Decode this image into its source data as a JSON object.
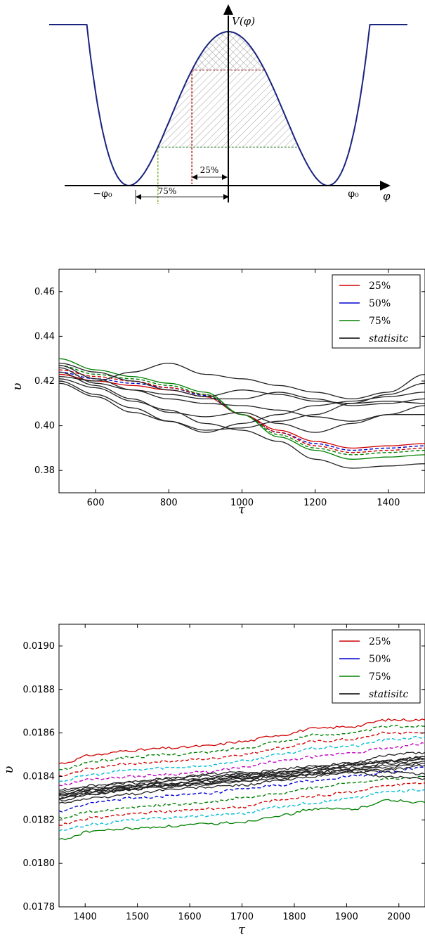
{
  "chart_data": [
    {
      "type": "diagram",
      "y_axis_label": "V(φ)",
      "x_axis_label": "φ",
      "x_tick_labels": [
        "−φ₀",
        "φ₀"
      ],
      "level_labels": [
        "25%",
        "75%"
      ],
      "curve": "double-well potential",
      "x_range": [
        -1.8,
        1.8
      ],
      "y_range": [
        0,
        1.1
      ],
      "minima_x": [
        -1,
        1
      ],
      "maximum": 1,
      "levels": [
        {
          "label": "25%",
          "fraction_below_max": 0.25,
          "color": "#8b0000"
        },
        {
          "label": "75%",
          "fraction_below_max": 0.75,
          "color": "#2e7d32"
        }
      ],
      "colors": {
        "curve": "#1a237e",
        "red": "#b71c1c",
        "green": "#2e7d32"
      }
    },
    {
      "type": "line",
      "xlabel": "τ",
      "ylabel": "υ",
      "xlim": [
        500,
        1500
      ],
      "ylim": [
        0.37,
        0.47
      ],
      "xticks": [
        600,
        800,
        1000,
        1200,
        1400
      ],
      "yticks": [
        0.38,
        0.4,
        0.42,
        0.44,
        0.46
      ],
      "xtick_labels": [
        "600",
        "800",
        "1000",
        "1200",
        "1400"
      ],
      "ytick_labels": [
        "0.38",
        "0.40",
        "0.42",
        "0.44",
        "0.46"
      ],
      "legend": {
        "position": "top-right",
        "entries": [
          {
            "label": "25%",
            "color": "#d00000",
            "style": "solid"
          },
          {
            "label": "50%",
            "color": "#0000d0",
            "style": "solid"
          },
          {
            "label": "75%",
            "color": "#008000",
            "style": "solid"
          },
          {
            "label": "statisitc",
            "color": "#000000",
            "style": "solid",
            "italic": true
          }
        ]
      },
      "x": [
        500,
        600,
        700,
        800,
        900,
        1000,
        1100,
        1200,
        1300,
        1400,
        1500
      ],
      "series": [
        {
          "name": "25%",
          "color": "#d00000",
          "style": "solid",
          "values": [
            0.423,
            0.42,
            0.418,
            0.416,
            0.413,
            0.405,
            0.398,
            0.393,
            0.39,
            0.391,
            0.392
          ]
        },
        {
          "color": "#0000d0",
          "style": "dashed",
          "values": [
            0.424,
            0.421,
            0.419,
            0.417,
            0.4135,
            0.405,
            0.397,
            0.392,
            0.389,
            0.39,
            0.391
          ]
        },
        {
          "color": "#d00000",
          "style": "dashed",
          "values": [
            0.425,
            0.422,
            0.42,
            0.417,
            0.414,
            0.405,
            0.397,
            0.391,
            0.388,
            0.389,
            0.39
          ]
        },
        {
          "color": "#008000",
          "style": "dashed",
          "values": [
            0.427,
            0.423,
            0.421,
            0.418,
            0.414,
            0.405,
            0.396,
            0.39,
            0.387,
            0.388,
            0.389
          ]
        },
        {
          "name": "75%",
          "color": "#008000",
          "style": "solid",
          "values": [
            0.43,
            0.425,
            0.422,
            0.419,
            0.415,
            0.405,
            0.395,
            0.389,
            0.385,
            0.386,
            0.387
          ]
        },
        {
          "name": "statisitc",
          "color": "#222222",
          "style": "solid",
          "values": [
            0.422,
            0.42,
            0.424,
            0.428,
            0.423,
            0.421,
            0.418,
            0.415,
            0.412,
            0.415,
            0.423
          ]
        },
        {
          "color": "#222222",
          "style": "solid",
          "values": [
            0.421,
            0.417,
            0.411,
            0.407,
            0.401,
            0.398,
            0.393,
            0.385,
            0.381,
            0.382,
            0.383
          ]
        },
        {
          "color": "#222222",
          "style": "solid",
          "values": [
            0.426,
            0.419,
            0.416,
            0.414,
            0.412,
            0.412,
            0.415,
            0.412,
            0.409,
            0.41,
            0.412
          ]
        },
        {
          "color": "#222222",
          "style": "solid",
          "values": [
            0.42,
            0.414,
            0.408,
            0.402,
            0.398,
            0.399,
            0.402,
            0.405,
            0.41,
            0.411,
            0.41
          ]
        },
        {
          "color": "#222222",
          "style": "solid",
          "values": [
            0.424,
            0.418,
            0.412,
            0.406,
            0.404,
            0.406,
            0.401,
            0.397,
            0.401,
            0.405,
            0.405
          ]
        },
        {
          "color": "#222222",
          "style": "solid",
          "values": [
            0.419,
            0.413,
            0.406,
            0.402,
            0.397,
            0.401,
            0.405,
            0.409,
            0.411,
            0.413,
            0.415
          ]
        },
        {
          "color": "#222222",
          "style": "solid",
          "values": [
            0.428,
            0.424,
            0.42,
            0.416,
            0.413,
            0.416,
            0.414,
            0.411,
            0.41,
            0.414,
            0.419
          ]
        },
        {
          "color": "#222222",
          "style": "solid",
          "values": [
            0.427,
            0.421,
            0.416,
            0.412,
            0.41,
            0.409,
            0.407,
            0.404,
            0.402,
            0.405,
            0.409
          ]
        }
      ]
    },
    {
      "type": "line",
      "xlabel": "τ",
      "ylabel": "υ",
      "xlim": [
        1350,
        2050
      ],
      "ylim": [
        0.0178,
        0.0191
      ],
      "xticks": [
        1400,
        1500,
        1600,
        1700,
        1800,
        1900,
        2000
      ],
      "yticks": [
        0.0178,
        0.018,
        0.0182,
        0.0184,
        0.0186,
        0.0188,
        0.019
      ],
      "xtick_labels": [
        "1400",
        "1500",
        "1600",
        "1700",
        "1800",
        "1900",
        "2000"
      ],
      "ytick_labels": [
        "0.0178",
        "0.0180",
        "0.0182",
        "0.0184",
        "0.0186",
        "0.0188",
        "0.0190"
      ],
      "legend": {
        "position": "top-right",
        "entries": [
          {
            "label": "25%",
            "color": "#d00000",
            "style": "solid"
          },
          {
            "label": "50%",
            "color": "#0000d0",
            "style": "solid"
          },
          {
            "label": "75%",
            "color": "#008000",
            "style": "solid"
          },
          {
            "label": "statisitc",
            "color": "#000000",
            "style": "solid",
            "italic": true
          }
        ]
      },
      "x": [
        1350,
        1420,
        1490,
        1560,
        1630,
        1700,
        1770,
        1840,
        1910,
        1980,
        2050
      ],
      "series": [
        {
          "name": "25%",
          "color": "#d00000",
          "style": "solid",
          "values": [
            0.01846,
            0.0185,
            0.01852,
            0.01853,
            0.01854,
            0.01856,
            0.01859,
            0.01862,
            0.01863,
            0.01866,
            0.01866
          ]
        },
        {
          "color": "#008000",
          "style": "dashed",
          "values": [
            0.01843,
            0.01847,
            0.01849,
            0.0185,
            0.01851,
            0.01853,
            0.01856,
            0.01859,
            0.0186,
            0.01863,
            0.01863
          ]
        },
        {
          "color": "#d00000",
          "style": "dashed",
          "values": [
            0.0184,
            0.01844,
            0.01846,
            0.01847,
            0.01848,
            0.0185,
            0.01853,
            0.01856,
            0.01857,
            0.0186,
            0.0186
          ]
        },
        {
          "color": "#00bcd4",
          "style": "dashed",
          "values": [
            0.01838,
            0.01841,
            0.01843,
            0.01844,
            0.01845,
            0.01847,
            0.0185,
            0.01853,
            0.01854,
            0.01857,
            0.01858
          ]
        },
        {
          "color": "#c000c0",
          "style": "dashed",
          "values": [
            0.01836,
            0.01839,
            0.0184,
            0.01841,
            0.01842,
            0.01844,
            0.01847,
            0.01849,
            0.01851,
            0.01853,
            0.01855
          ]
        },
        {
          "color": "#0000d0",
          "style": "dashed",
          "values": [
            0.01824,
            0.01828,
            0.0183,
            0.01831,
            0.01832,
            0.01834,
            0.01836,
            0.01838,
            0.0184,
            0.01842,
            0.01844
          ]
        },
        {
          "color": "#008000",
          "style": "dashed",
          "values": [
            0.01821,
            0.01824,
            0.01826,
            0.01827,
            0.01828,
            0.0183,
            0.01832,
            0.01835,
            0.01837,
            0.01839,
            0.0184
          ]
        },
        {
          "color": "#d00000",
          "style": "dashed",
          "values": [
            0.01818,
            0.01821,
            0.01823,
            0.01824,
            0.01825,
            0.01826,
            0.01829,
            0.01831,
            0.01833,
            0.01836,
            0.01837
          ]
        },
        {
          "color": "#00bcd4",
          "style": "dashed",
          "values": [
            0.01815,
            0.01818,
            0.0182,
            0.01821,
            0.01822,
            0.01823,
            0.01826,
            0.01828,
            0.0183,
            0.01833,
            0.01834
          ]
        },
        {
          "name": "75%",
          "color": "#008000",
          "style": "solid",
          "values": [
            0.01811,
            0.01815,
            0.01816,
            0.01817,
            0.01818,
            0.01819,
            0.01822,
            0.01825,
            0.01825,
            0.01829,
            0.01828
          ]
        },
        {
          "name": "statisitc",
          "color": "#222222",
          "style": "solid",
          "values": [
            0.01832,
            0.01834,
            0.01836,
            0.01838,
            0.01838,
            0.0184,
            0.01841,
            0.01843,
            0.01845,
            0.01847,
            0.01849
          ]
        },
        {
          "color": "#222222",
          "style": "solid",
          "values": [
            0.0183,
            0.01832,
            0.01834,
            0.01836,
            0.01837,
            0.01839,
            0.0184,
            0.01841,
            0.01843,
            0.01845,
            0.01847
          ]
        },
        {
          "color": "#222222",
          "style": "solid",
          "values": [
            0.01828,
            0.0183,
            0.01832,
            0.01834,
            0.01835,
            0.01836,
            0.01838,
            0.0184,
            0.01842,
            0.01843,
            0.01845
          ]
        },
        {
          "color": "#222222",
          "style": "solid",
          "values": [
            0.01833,
            0.01835,
            0.01838,
            0.01839,
            0.0184,
            0.01841,
            0.01842,
            0.01844,
            0.01846,
            0.0185,
            0.01851
          ]
        },
        {
          "color": "#222222",
          "style": "solid",
          "values": [
            0.01831,
            0.01834,
            0.01835,
            0.01836,
            0.01839,
            0.0184,
            0.01842,
            0.01843,
            0.01845,
            0.01847,
            0.01848
          ]
        },
        {
          "color": "#222222",
          "style": "solid",
          "values": [
            0.01829,
            0.01832,
            0.01834,
            0.01836,
            0.01836,
            0.01838,
            0.0184,
            0.01842,
            0.01843,
            0.01844,
            0.01846
          ]
        },
        {
          "color": "#222222",
          "style": "solid",
          "values": [
            0.01834,
            0.01836,
            0.01837,
            0.01839,
            0.01841,
            0.01842,
            0.0184,
            0.01842,
            0.01844,
            0.01846,
            0.01848
          ]
        },
        {
          "color": "#222222",
          "style": "solid",
          "values": [
            0.0183,
            0.01833,
            0.01835,
            0.01835,
            0.01837,
            0.01838,
            0.01839,
            0.01841,
            0.01842,
            0.0184,
            0.01839
          ]
        },
        {
          "color": "#222222",
          "style": "solid",
          "values": [
            0.01832,
            0.01834,
            0.01836,
            0.01837,
            0.01838,
            0.01839,
            0.01841,
            0.01844,
            0.01843,
            0.01842,
            0.01841
          ]
        },
        {
          "color": "#222222",
          "style": "solid",
          "values": [
            0.01831,
            0.01833,
            0.01834,
            0.01838,
            0.01839,
            0.01841,
            0.01843,
            0.01845,
            0.01846,
            0.01847,
            0.01849
          ]
        }
      ]
    }
  ]
}
